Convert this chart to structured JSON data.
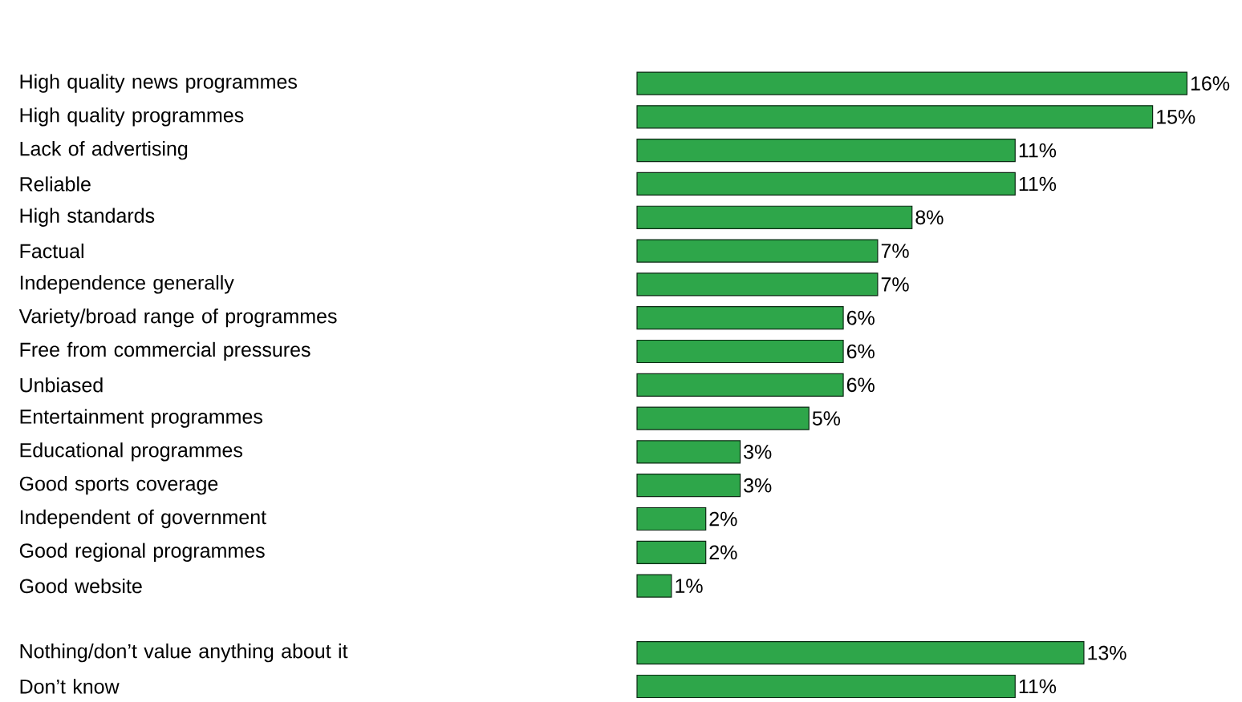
{
  "chart_data": {
    "type": "bar",
    "orientation": "horizontal",
    "color": "#2ea64a",
    "categories": [
      "High quality news programmes",
      "High quality programmes",
      "Lack of advertising",
      "Reliable",
      "High standards",
      "Factual",
      "Independence generally",
      "Variety/broad range of programmes",
      "Free from commercial pressures",
      "Unbiased",
      "Entertainment programmes",
      "Educational programmes",
      "Good sports coverage",
      "Independent of government",
      "Good regional programmes",
      "Good website",
      null,
      "Nothing/don’t value anything about it",
      "Don’t know"
    ],
    "values": [
      16,
      15,
      11,
      11,
      8,
      7,
      7,
      6,
      6,
      6,
      5,
      3,
      3,
      2,
      2,
      1,
      null,
      13,
      11
    ],
    "value_labels": [
      "16%",
      "15%",
      "11%",
      "11%",
      "8%",
      "7%",
      "7%",
      "6%",
      "6%",
      "6%",
      "5%",
      "3%",
      "3%",
      "2%",
      "2%",
      "1%",
      null,
      "13%",
      "11%"
    ]
  }
}
